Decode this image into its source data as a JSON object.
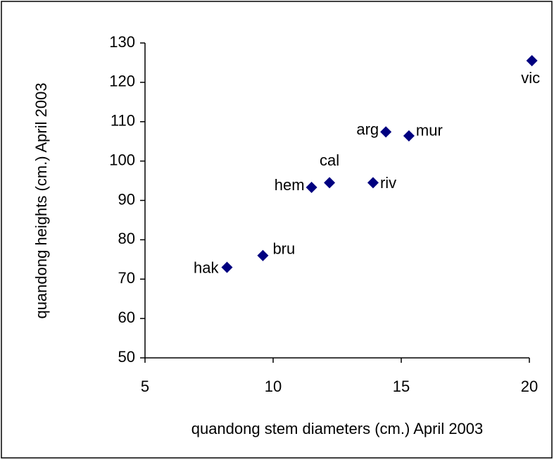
{
  "chart_data": {
    "type": "scatter",
    "xlabel": "quandong stem diameters (cm.) April 2003",
    "ylabel": "quandong heights (cm.) April 2003",
    "x": [
      8.2,
      9.6,
      11.5,
      12.2,
      13.9,
      14.4,
      15.3,
      20.1
    ],
    "values": [
      73,
      76,
      93.3,
      94.5,
      94.5,
      107.4,
      106.4,
      125.5
    ],
    "point_labels": [
      "hak",
      "bru",
      "hem",
      "cal",
      "riv",
      "arg",
      "mur",
      "vic"
    ],
    "color": "#000080",
    "xlim": [
      5,
      20
    ],
    "xticks": [
      5,
      10,
      15,
      20
    ],
    "ylim": [
      50,
      130
    ],
    "yticks": [
      50,
      60,
      70,
      80,
      90,
      100,
      110,
      120,
      130
    ],
    "grid": false
  }
}
